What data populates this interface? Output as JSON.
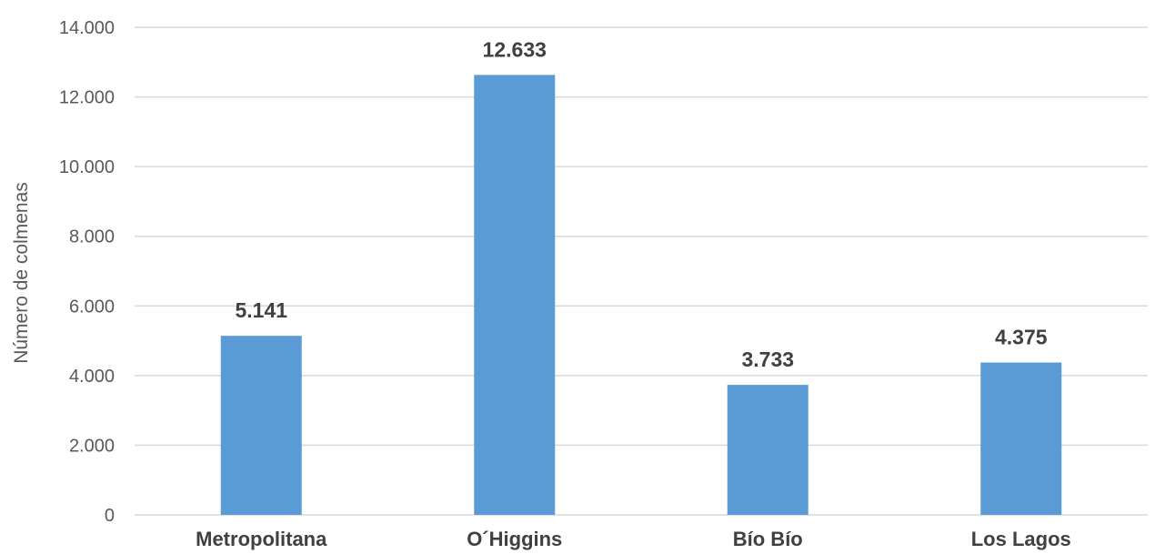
{
  "chart_data": {
    "type": "bar",
    "title": "",
    "xlabel": "",
    "ylabel": "Número de colmenas",
    "categories": [
      "Metropolitana",
      "O´Higgins",
      "Bío Bío",
      "Los Lagos"
    ],
    "values": [
      5141,
      12633,
      3733,
      4375
    ],
    "value_labels": [
      "5.141",
      "12.633",
      "3.733",
      "4.375"
    ],
    "ylim": [
      0,
      14000
    ],
    "yticks": [
      0,
      2000,
      4000,
      6000,
      8000,
      10000,
      12000,
      14000
    ],
    "ytick_labels": [
      "0",
      "2.000",
      "4.000",
      "6.000",
      "8.000",
      "10.000",
      "12.000",
      "14.000"
    ],
    "grid": true,
    "legend": "none",
    "colors": {
      "bar": "#5b9bd5",
      "grid": "#d9d9d9",
      "text": "#595959",
      "label": "#404040"
    }
  }
}
